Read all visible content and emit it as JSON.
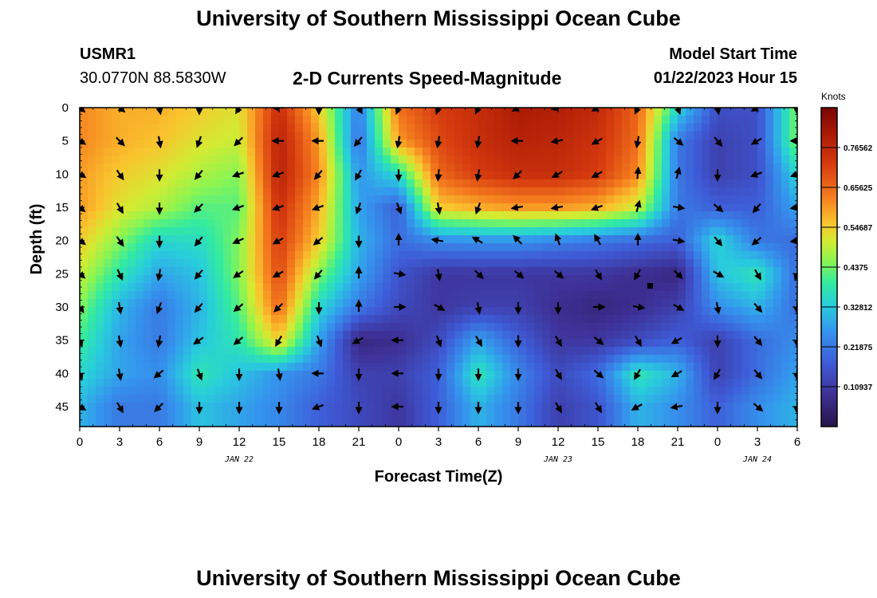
{
  "title": "University of Southern Mississippi Ocean Cube",
  "station_id": "USMR1",
  "coordinates": "30.0770N  88.5830W",
  "subtitle": "2-D Currents Speed-Magnitude",
  "model_start_label": "Model Start Time",
  "model_start_value": "01/22/2023 Hour 15",
  "bottom_title": "University of Southern Mississippi Ocean Cube",
  "chart_data": {
    "type": "heatmap",
    "xlabel": "Forecast Time(Z)",
    "ylabel": "Depth (ft)",
    "x_tick_labels": [
      "0",
      "3",
      "6",
      "9",
      "12",
      "15",
      "18",
      "21",
      "0",
      "3",
      "6",
      "9",
      "12",
      "15",
      "18",
      "21",
      "0",
      "3",
      "6"
    ],
    "date_labels": [
      {
        "label": "JAN 22",
        "at_tick": 4
      },
      {
        "label": "JAN 23",
        "at_tick": 12
      },
      {
        "label": "JAN 24",
        "at_tick": 17
      }
    ],
    "y_ticks": [
      0,
      5,
      10,
      15,
      20,
      25,
      30,
      35,
      40,
      45
    ],
    "ylim": [
      0,
      48
    ],
    "y_inverted": true,
    "colorbar": {
      "unit": "Knots",
      "range": [
        0,
        0.875
      ],
      "tick_values": [
        0.10937,
        0.21875,
        0.32812,
        0.4375,
        0.54687,
        0.65625,
        0.76562
      ],
      "tick_labels": [
        "0.10937",
        "0.21875",
        "0.32812",
        "0.4375",
        "0.54687",
        "0.65625",
        "0.76562"
      ]
    },
    "grid_depths": [
      0,
      5,
      10,
      15,
      20,
      25,
      30,
      35,
      40,
      45
    ],
    "speed_knots": [
      [
        0.62,
        0.58,
        0.58,
        0.55,
        0.52,
        0.75,
        0.55,
        0.22,
        0.65,
        0.72,
        0.75,
        0.8,
        0.79,
        0.76,
        0.66,
        0.35,
        0.15,
        0.15,
        0.45
      ],
      [
        0.62,
        0.58,
        0.56,
        0.52,
        0.5,
        0.78,
        0.6,
        0.2,
        0.6,
        0.7,
        0.75,
        0.78,
        0.77,
        0.74,
        0.65,
        0.22,
        0.12,
        0.15,
        0.45
      ],
      [
        0.6,
        0.55,
        0.52,
        0.48,
        0.45,
        0.78,
        0.62,
        0.26,
        0.36,
        0.66,
        0.72,
        0.75,
        0.75,
        0.72,
        0.62,
        0.22,
        0.12,
        0.15,
        0.35
      ],
      [
        0.6,
        0.52,
        0.48,
        0.42,
        0.42,
        0.75,
        0.58,
        0.28,
        0.18,
        0.55,
        0.58,
        0.6,
        0.6,
        0.58,
        0.5,
        0.22,
        0.18,
        0.18,
        0.28
      ],
      [
        0.55,
        0.45,
        0.35,
        0.36,
        0.45,
        0.72,
        0.55,
        0.3,
        0.2,
        0.25,
        0.26,
        0.26,
        0.24,
        0.22,
        0.2,
        0.18,
        0.35,
        0.22,
        0.2
      ],
      [
        0.5,
        0.38,
        0.28,
        0.32,
        0.45,
        0.7,
        0.45,
        0.28,
        0.16,
        0.1,
        0.1,
        0.1,
        0.1,
        0.1,
        0.08,
        0.06,
        0.32,
        0.38,
        0.2
      ],
      [
        0.45,
        0.3,
        0.22,
        0.3,
        0.42,
        0.66,
        0.35,
        0.22,
        0.14,
        0.1,
        0.12,
        0.12,
        0.08,
        0.06,
        0.08,
        0.12,
        0.25,
        0.3,
        0.2
      ],
      [
        0.4,
        0.28,
        0.22,
        0.32,
        0.38,
        0.55,
        0.28,
        0.06,
        0.08,
        0.14,
        0.28,
        0.18,
        0.1,
        0.1,
        0.14,
        0.18,
        0.12,
        0.2,
        0.25
      ],
      [
        0.35,
        0.28,
        0.25,
        0.38,
        0.32,
        0.26,
        0.22,
        0.12,
        0.12,
        0.18,
        0.38,
        0.24,
        0.14,
        0.2,
        0.38,
        0.3,
        0.12,
        0.2,
        0.28
      ],
      [
        0.3,
        0.22,
        0.22,
        0.32,
        0.28,
        0.24,
        0.18,
        0.14,
        0.1,
        0.18,
        0.3,
        0.22,
        0.12,
        0.16,
        0.3,
        0.25,
        0.18,
        0.25,
        0.3
      ]
    ],
    "vector_angles_deg": [
      [
        -40,
        -40,
        -80,
        -90,
        -120,
        -180,
        -90,
        -60,
        -110,
        -110,
        -115,
        -150,
        -165,
        -150,
        -115,
        -70,
        -80,
        -150,
        -90
      ],
      [
        -30,
        -45,
        -80,
        -110,
        -135,
        180,
        180,
        -130,
        -100,
        -100,
        -100,
        180,
        -170,
        -150,
        -100,
        -40,
        -50,
        -150,
        180
      ],
      [
        -30,
        -55,
        -90,
        -130,
        -160,
        -160,
        -130,
        -120,
        -90,
        -95,
        -100,
        -135,
        -150,
        -150,
        85,
        75,
        -90,
        -160,
        -160
      ],
      [
        -40,
        -60,
        -90,
        -135,
        -160,
        -160,
        -160,
        -110,
        -70,
        -80,
        -110,
        -170,
        -170,
        -160,
        75,
        -10,
        -40,
        -130,
        -170
      ],
      [
        -35,
        -55,
        -90,
        -130,
        -155,
        -150,
        -140,
        -90,
        90,
        170,
        150,
        135,
        110,
        120,
        90,
        -10,
        -50,
        -140,
        -170
      ],
      [
        -40,
        -65,
        -100,
        -130,
        -145,
        -150,
        -130,
        90,
        -10,
        -80,
        -45,
        -40,
        -40,
        -60,
        -120,
        -45,
        -30,
        -60,
        -110
      ],
      [
        -55,
        -80,
        -110,
        -130,
        -140,
        -135,
        -90,
        90,
        0,
        -30,
        -80,
        -90,
        -90,
        0,
        -10,
        -30,
        -80,
        -50,
        -90
      ],
      [
        -70,
        -80,
        -100,
        -145,
        -140,
        -120,
        -70,
        -150,
        180,
        -70,
        -60,
        -90,
        -60,
        -40,
        -60,
        -150,
        -90,
        -50,
        -90
      ],
      [
        -70,
        -80,
        -140,
        -70,
        -90,
        -80,
        -180,
        -90,
        -180,
        -90,
        -90,
        -90,
        -60,
        -40,
        -120,
        -150,
        -120,
        -50,
        -90
      ],
      [
        -30,
        -60,
        -135,
        -90,
        -90,
        -90,
        -160,
        -90,
        -180,
        -90,
        -90,
        -90,
        -60,
        -60,
        -150,
        -170,
        -90,
        -40,
        -90
      ]
    ]
  }
}
